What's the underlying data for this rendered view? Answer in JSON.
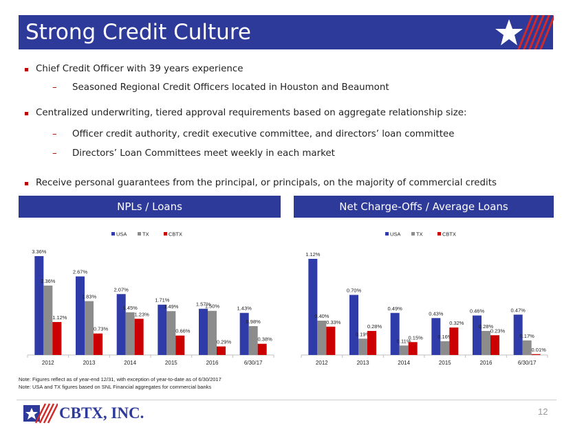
{
  "header": {
    "title": "Strong Credit Culture"
  },
  "bullets": [
    {
      "level": 1,
      "text": "Chief Credit Officer with 39 years experience"
    },
    {
      "level": 2,
      "text": "Seasoned Regional Credit Officers located in Houston and Beaumont"
    },
    {
      "level": 1,
      "text": "Centralized underwriting, tiered approval requirements based on aggregate relationship size:"
    },
    {
      "level": 2,
      "text": "Officer credit authority, credit executive committee, and directors’ loan committee"
    },
    {
      "level": 2,
      "text": "Directors’ Loan Committees meet weekly in each market"
    },
    {
      "level": 1,
      "text": "Receive personal guarantees from the principal, or principals, on the majority of commercial credits"
    }
  ],
  "panels": {
    "left_title": "NPLs / Loans",
    "right_title": "Net Charge-Offs / Average Loans"
  },
  "chart_data": [
    {
      "type": "bar",
      "categories": [
        "2012",
        "2013",
        "2014",
        "2015",
        "2016",
        "6/30/17"
      ],
      "series": [
        {
          "name": "USA",
          "values": [
            3.36,
            2.67,
            2.07,
            1.71,
            1.57,
            1.43
          ],
          "labels": [
            "3.36%",
            "2.67%",
            "2.07%",
            "1.71%",
            "1.57%",
            "1.43%"
          ]
        },
        {
          "name": "TX",
          "values": [
            2.36,
            1.83,
            1.45,
            1.49,
            1.5,
            0.98
          ],
          "labels": [
            "2.36%",
            "1.83%",
            "1.45%",
            "1.49%",
            "1.50%",
            "0.98%"
          ]
        },
        {
          "name": "CBTX",
          "values": [
            1.12,
            0.73,
            1.23,
            0.66,
            0.29,
            0.38
          ],
          "labels": [
            "1.12%",
            "0.73%",
            "1.23%",
            "0.66%",
            "0.29%",
            "0.38%"
          ]
        }
      ],
      "colors": [
        "#2e3ba8",
        "#8c8c8c",
        "#cc0000"
      ],
      "legend": "top-center",
      "ylim": [
        0,
        3.5
      ]
    },
    {
      "type": "bar",
      "categories": [
        "2012",
        "2013",
        "2014",
        "2015",
        "2016",
        "6/30/17"
      ],
      "series": [
        {
          "name": "USA",
          "values": [
            1.12,
            0.7,
            0.49,
            0.43,
            0.46,
            0.47
          ],
          "labels": [
            "1.12%",
            "0.70%",
            "0.49%",
            "0.43%",
            "0.46%",
            "0.47%"
          ]
        },
        {
          "name": "TX",
          "values": [
            0.4,
            0.19,
            0.11,
            0.16,
            0.28,
            0.17
          ],
          "labels": [
            "0.40%",
            "0.19%",
            "0.11%",
            "0.16%",
            "0.28%",
            "0.17%"
          ]
        },
        {
          "name": "CBTX",
          "values": [
            0.33,
            0.28,
            0.15,
            0.32,
            0.23,
            0.01
          ],
          "labels": [
            "0.33%",
            "0.28%",
            "0.15%",
            "0.32%",
            "0.23%",
            "0.01%"
          ]
        }
      ],
      "colors": [
        "#2e3ba8",
        "#8c8c8c",
        "#cc0000"
      ],
      "legend": "top-center",
      "ylim": [
        0,
        1.2
      ]
    }
  ],
  "notes": [
    "Note: Figures reflect as of year-end 12/31, with exception of year-to-date as of 6/30/2017",
    "Note: USA and TX figures based on SNL Financial aggregates for commercial banks"
  ],
  "footer": {
    "company": "CBTX, INC.",
    "page": "12"
  }
}
